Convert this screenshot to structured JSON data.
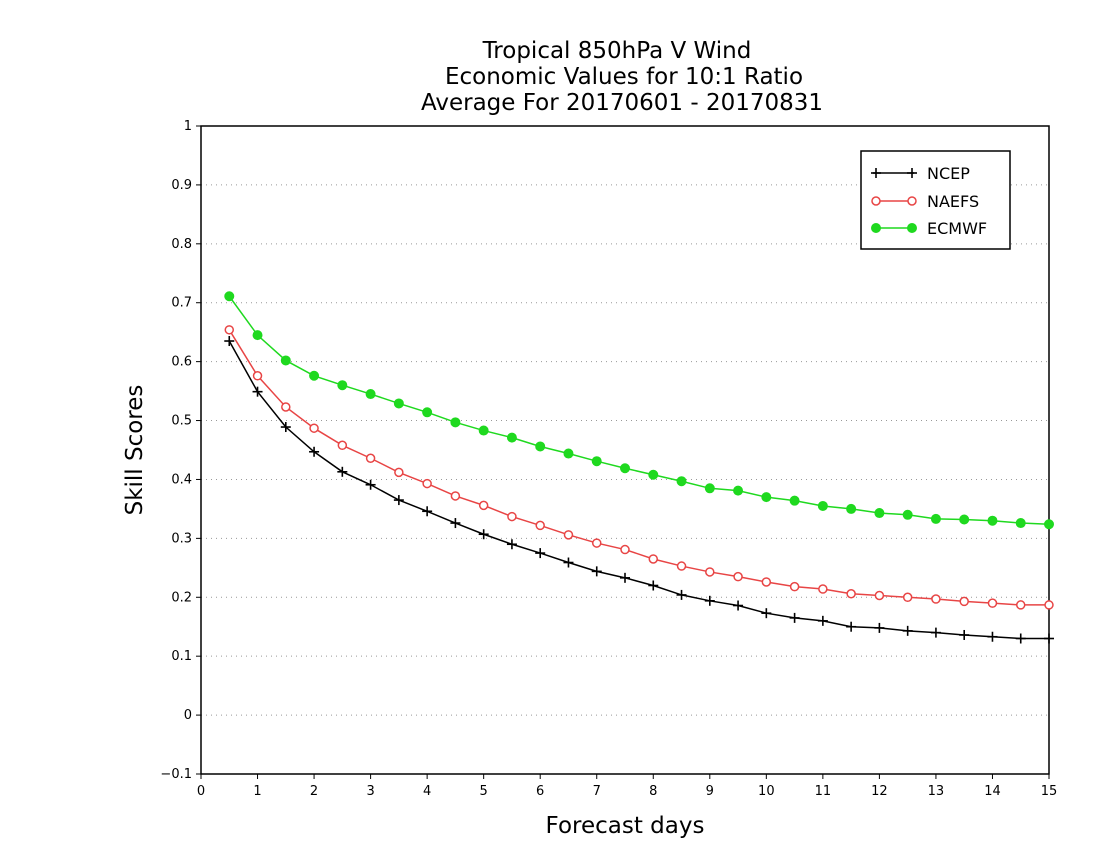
{
  "chart_data": {
    "type": "line",
    "title_lines": [
      "Tropical 850hPa V Wind",
      "Economic Values for 10:1 Ratio",
      "Average For 20170601 - 20170831"
    ],
    "xlabel": "Forecast days",
    "ylabel": "Skill Scores",
    "xlim": [
      0,
      15
    ],
    "ylim": [
      -0.1,
      1
    ],
    "x_ticks": [
      "0",
      "1",
      "2",
      "3",
      "4",
      "5",
      "6",
      "7",
      "8",
      "9",
      "10",
      "11",
      "12",
      "13",
      "14",
      "15"
    ],
    "y_ticks": [
      "−0.1",
      "0",
      "0.1",
      "0.2",
      "0.3",
      "0.4",
      "0.5",
      "0.6",
      "0.7",
      "0.8",
      "0.9",
      "1"
    ],
    "grid": "horizontal dotted",
    "legend_position": "top-right",
    "x": [
      0.5,
      1,
      1.5,
      2,
      2.5,
      3,
      3.5,
      4,
      4.5,
      5,
      5.5,
      6,
      6.5,
      7,
      7.5,
      8,
      8.5,
      9,
      9.5,
      10,
      10.5,
      11,
      11.5,
      12,
      12.5,
      13,
      13.5,
      14,
      14.5,
      15
    ],
    "series": [
      {
        "name": "NCEP",
        "color": "#000000",
        "marker": "plus",
        "values": [
          0.635,
          0.549,
          0.489,
          0.447,
          0.413,
          0.391,
          0.365,
          0.346,
          0.326,
          0.307,
          0.29,
          0.275,
          0.259,
          0.244,
          0.233,
          0.22,
          0.204,
          0.194,
          0.186,
          0.173,
          0.165,
          0.16,
          0.15,
          0.148,
          0.143,
          0.14,
          0.136,
          0.133,
          0.13,
          0.13
        ]
      },
      {
        "name": "NAEFS",
        "color": "#e84545",
        "marker": "open-circle",
        "values": [
          0.654,
          0.576,
          0.523,
          0.487,
          0.458,
          0.436,
          0.412,
          0.393,
          0.372,
          0.356,
          0.337,
          0.322,
          0.306,
          0.292,
          0.281,
          0.265,
          0.253,
          0.243,
          0.235,
          0.226,
          0.218,
          0.214,
          0.206,
          0.203,
          0.2,
          0.197,
          0.193,
          0.19,
          0.187,
          0.187
        ]
      },
      {
        "name": "ECMWF",
        "color": "#1fd91f",
        "marker": "filled-circle",
        "values": [
          0.711,
          0.645,
          0.602,
          0.576,
          0.56,
          0.545,
          0.529,
          0.514,
          0.497,
          0.483,
          0.471,
          0.456,
          0.444,
          0.431,
          0.419,
          0.408,
          0.397,
          0.385,
          0.381,
          0.37,
          0.364,
          0.355,
          0.35,
          0.343,
          0.34,
          0.333,
          0.332,
          0.33,
          0.326,
          0.324
        ]
      }
    ]
  }
}
